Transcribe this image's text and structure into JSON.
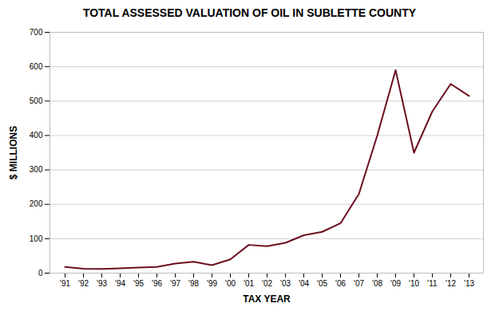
{
  "chart_data": {
    "type": "line",
    "title": "TOTAL ASSESSED VALUATION OF OIL IN SUBLETTE COUNTY",
    "xlabel": "TAX YEAR",
    "ylabel": "$ MILLIONS",
    "categories": [
      "'91",
      "'92",
      "'93",
      "'94",
      "'95",
      "'96",
      "'97",
      "'98",
      "'99",
      "'00",
      "'01",
      "'02",
      "'03",
      "'04",
      "'05",
      "'06",
      "'07",
      "'08",
      "'09",
      "'10",
      "'11",
      "'12",
      "'13"
    ],
    "values": [
      18,
      13,
      12,
      14,
      16,
      18,
      28,
      33,
      23,
      40,
      82,
      78,
      88,
      110,
      120,
      145,
      230,
      400,
      590,
      350,
      470,
      550,
      515
    ],
    "color": "#6B0E1E",
    "ylim": [
      0,
      700
    ],
    "yticks": [
      0,
      100,
      200,
      300,
      400,
      500,
      600,
      700
    ],
    "grid": true
  }
}
